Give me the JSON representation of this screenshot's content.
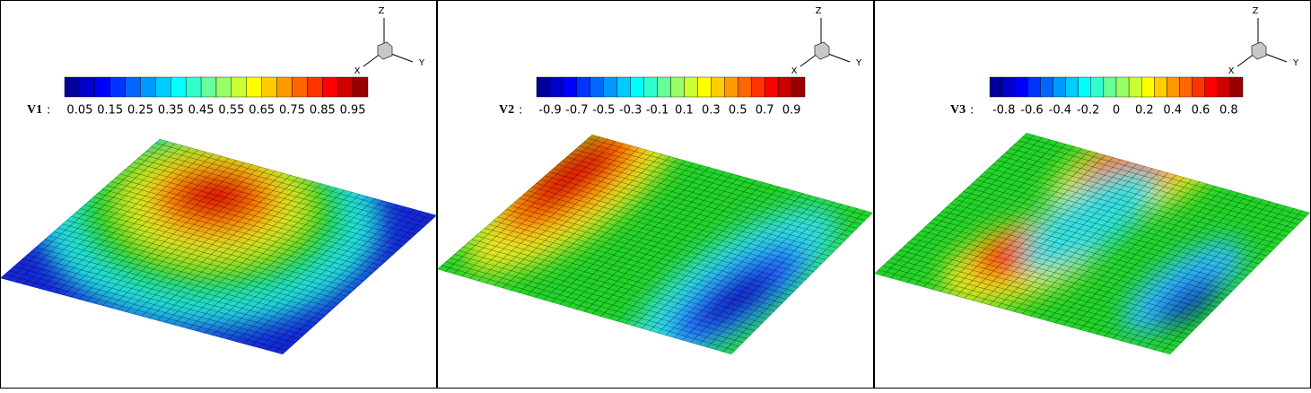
{
  "panels": [
    {
      "label": "V1",
      "separator": ":",
      "range": [
        0,
        1
      ],
      "ticks": [
        0.05,
        0.15,
        0.25,
        0.35,
        0.45,
        0.55,
        0.65,
        0.75,
        0.85,
        0.95
      ],
      "axes": {
        "x": "X",
        "y": "Y",
        "z": "Z"
      }
    },
    {
      "label": "V2",
      "separator": ":",
      "range": [
        -1,
        1
      ],
      "ticks": [
        -0.9,
        -0.7,
        -0.5,
        -0.3,
        -0.1,
        0.1,
        0.3,
        0.5,
        0.7,
        0.9
      ],
      "axes": {
        "x": "X",
        "y": "Y",
        "z": "Z"
      }
    },
    {
      "label": "V3",
      "separator": ":",
      "range": [
        -0.9,
        0.9
      ],
      "ticks": [
        -0.8,
        -0.6,
        -0.4,
        -0.2,
        0,
        0.2,
        0.4,
        0.6,
        0.8
      ],
      "axes": {
        "x": "X",
        "y": "Y",
        "z": "Z"
      }
    }
  ]
}
